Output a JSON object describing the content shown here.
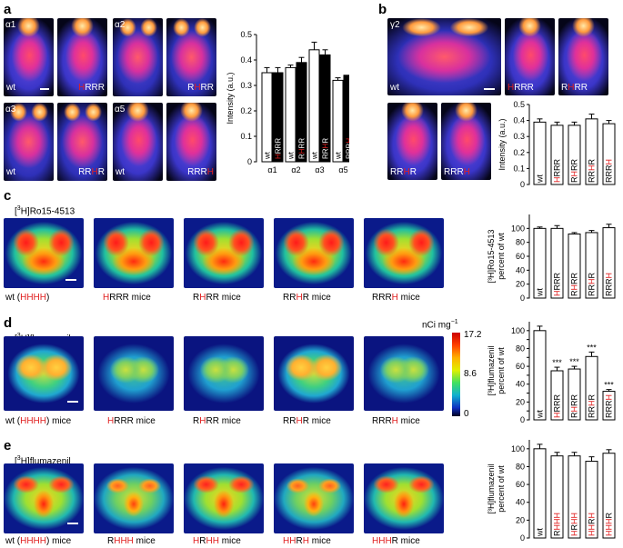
{
  "panels": {
    "a": {
      "label": "a",
      "images": [
        {
          "tag": "α1",
          "corner": "wt"
        },
        {
          "tag": "",
          "corner_parts": [
            {
              "t": "H",
              "red": true
            },
            {
              "t": "RRR",
              "red": false
            }
          ]
        },
        {
          "tag": "α2",
          "corner": ""
        },
        {
          "tag": "",
          "corner_parts": [
            {
              "t": "R",
              "red": false
            },
            {
              "t": "H",
              "red": true
            },
            {
              "t": "RR",
              "red": false
            }
          ]
        },
        {
          "tag": "α3",
          "corner": "wt"
        },
        {
          "tag": "",
          "corner_parts": [
            {
              "t": "RR",
              "red": false
            },
            {
              "t": "H",
              "red": true
            },
            {
              "t": "R",
              "red": false
            }
          ]
        },
        {
          "tag": "α5",
          "corner": "wt"
        },
        {
          "tag": "",
          "corner_parts": [
            {
              "t": "RRR",
              "red": false
            },
            {
              "t": "H",
              "red": true
            }
          ]
        }
      ]
    },
    "b": {
      "label": "b",
      "images": [
        {
          "tag": "γ2",
          "corner": "wt"
        },
        {
          "tag": "",
          "corner_parts": [
            {
              "t": "H",
              "red": true
            },
            {
              "t": "RRR",
              "red": false
            }
          ]
        },
        {
          "tag": "",
          "corner_parts": [
            {
              "t": "R",
              "red": false
            },
            {
              "t": "H",
              "red": true
            },
            {
              "t": "RR",
              "red": false
            }
          ]
        },
        {
          "tag": "",
          "corner_parts": [
            {
              "t": "RR",
              "red": false
            },
            {
              "t": "H",
              "red": true
            },
            {
              "t": "R",
              "red": false
            }
          ]
        },
        {
          "tag": "",
          "corner_parts": [
            {
              "t": "RRR",
              "red": false
            },
            {
              "t": "H",
              "red": true
            }
          ]
        }
      ]
    },
    "c": {
      "label": "c",
      "title_pre": "[",
      "title_sup": "3",
      "title_post": "H]Ro15-4513",
      "captions": [
        [
          {
            "t": "wt (",
            "red": false
          },
          {
            "t": "HHHH",
            "red": true
          },
          {
            "t": ")",
            "red": false
          }
        ],
        [
          {
            "t": "H",
            "red": true
          },
          {
            "t": "RRR mice",
            "red": false
          }
        ],
        [
          {
            "t": "R",
            "red": false
          },
          {
            "t": "H",
            "red": true
          },
          {
            "t": "RR mice",
            "red": false
          }
        ],
        [
          {
            "t": "RR",
            "red": false
          },
          {
            "t": "H",
            "red": true
          },
          {
            "t": "R mice",
            "red": false
          }
        ],
        [
          {
            "t": "RRR",
            "red": false
          },
          {
            "t": "H",
            "red": true
          },
          {
            "t": " mice",
            "red": false
          }
        ]
      ]
    },
    "d": {
      "label": "d",
      "title_pre": "[",
      "title_sup": "3",
      "title_post": "H]flumazenil",
      "colorbar": {
        "unit": "nCi mg",
        "unit_sup": "−1",
        "max": "17.2",
        "mid": "8.6",
        "min": "0"
      },
      "captions": [
        [
          {
            "t": "wt (",
            "red": false
          },
          {
            "t": "HHHH",
            "red": true
          },
          {
            "t": ") mice",
            "red": false
          }
        ],
        [
          {
            "t": "H",
            "red": true
          },
          {
            "t": "RRR mice",
            "red": false
          }
        ],
        [
          {
            "t": "R",
            "red": false
          },
          {
            "t": "H",
            "red": true
          },
          {
            "t": "RR mice",
            "red": false
          }
        ],
        [
          {
            "t": "RR",
            "red": false
          },
          {
            "t": "H",
            "red": true
          },
          {
            "t": "R mice",
            "red": false
          }
        ],
        [
          {
            "t": "RRR",
            "red": false
          },
          {
            "t": "H",
            "red": true
          },
          {
            "t": " mice",
            "red": false
          }
        ]
      ]
    },
    "e": {
      "label": "e",
      "title_pre": "[",
      "title_sup": "3",
      "title_post": "H]flumazenil",
      "captions": [
        [
          {
            "t": "wt (",
            "red": false
          },
          {
            "t": "HHHH",
            "red": true
          },
          {
            "t": ") mice",
            "red": false
          }
        ],
        [
          {
            "t": "R",
            "red": false
          },
          {
            "t": "HHH",
            "red": true
          },
          {
            "t": " mice",
            "red": false
          }
        ],
        [
          {
            "t": "H",
            "red": true
          },
          {
            "t": "R",
            "red": false
          },
          {
            "t": "HH",
            "red": true
          },
          {
            "t": " mice",
            "red": false
          }
        ],
        [
          {
            "t": "HH",
            "red": true
          },
          {
            "t": "R",
            "red": false
          },
          {
            "t": "H",
            "red": true
          },
          {
            "t": " mice",
            "red": false
          }
        ],
        [
          {
            "t": "HHH",
            "red": true
          },
          {
            "t": "R",
            "red": false
          },
          {
            "t": " mice",
            "red": false
          }
        ]
      ]
    }
  },
  "colors": {
    "red_residue": "#e02020",
    "bar_black": "#000000",
    "bar_white": "#ffffff"
  },
  "chart_data": [
    {
      "id": "a",
      "type": "bar",
      "ylabel": "Intensity (a.u.)",
      "ylim": [
        0,
        0.5
      ],
      "yticks": [
        "0",
        "0.1",
        "0.2",
        "0.3",
        "0.4",
        "0.5"
      ],
      "categories": [
        "α1",
        "α2",
        "α3",
        "α5"
      ],
      "series": [
        {
          "fill": "white",
          "values": [
            0.35,
            0.37,
            0.44,
            0.32
          ],
          "errors": [
            0.02,
            0.01,
            0.03,
            0.01
          ],
          "bar_labels": [
            [
              {
                "t": "wt",
                "red": false
              }
            ],
            [
              {
                "t": "wt",
                "red": false
              }
            ],
            [
              {
                "t": "wt",
                "red": false
              }
            ],
            [
              {
                "t": "wt",
                "red": false
              }
            ]
          ]
        },
        {
          "fill": "black",
          "values": [
            0.35,
            0.39,
            0.42,
            0.34
          ],
          "errors": [
            0.02,
            0.02,
            0.02,
            0.0
          ],
          "bar_labels": [
            [
              {
                "t": "H",
                "red": true
              },
              {
                "t": "RRR",
                "red": false
              }
            ],
            [
              {
                "t": "R",
                "red": false
              },
              {
                "t": "H",
                "red": true
              },
              {
                "t": "RR",
                "red": false
              }
            ],
            [
              {
                "t": "RR",
                "red": false
              },
              {
                "t": "H",
                "red": true
              },
              {
                "t": "R",
                "red": false
              }
            ],
            [
              {
                "t": "RRR",
                "red": false
              },
              {
                "t": "H",
                "red": true
              }
            ]
          ]
        }
      ],
      "grid": false
    },
    {
      "id": "b",
      "type": "bar",
      "ylabel": "Intensity (a.u.)",
      "ylim": [
        0,
        0.5
      ],
      "yticks": [
        "0",
        "0.1",
        "0.2",
        "0.3",
        "0.4",
        "0.5"
      ],
      "categories": [
        "wt",
        "HRRR",
        "RHRR",
        "RRHR",
        "RRRH"
      ],
      "values": [
        0.39,
        0.37,
        0.37,
        0.41,
        0.38
      ],
      "errors": [
        0.02,
        0.02,
        0.02,
        0.03,
        0.02
      ],
      "bar_labels": [
        [
          {
            "t": "wt",
            "red": false
          }
        ],
        [
          {
            "t": "H",
            "red": true
          },
          {
            "t": "RRR",
            "red": false
          }
        ],
        [
          {
            "t": "R",
            "red": false
          },
          {
            "t": "H",
            "red": true
          },
          {
            "t": "RR",
            "red": false
          }
        ],
        [
          {
            "t": "RR",
            "red": false
          },
          {
            "t": "H",
            "red": true
          },
          {
            "t": "R",
            "red": false
          }
        ],
        [
          {
            "t": "RRR",
            "red": false
          },
          {
            "t": "H",
            "red": true
          }
        ]
      ],
      "significance": [
        "",
        "",
        "",
        "",
        ""
      ],
      "grid": false
    },
    {
      "id": "c",
      "type": "bar",
      "ylabel_lines": [
        "[³H]Ro15-4513",
        "percent of wt"
      ],
      "ylim": [
        0,
        120
      ],
      "yticks": [
        "0",
        "20",
        "40",
        "60",
        "80",
        "100"
      ],
      "categories": [
        "wt",
        "HRRR",
        "RHRR",
        "RRHR",
        "RRRH"
      ],
      "values": [
        100,
        100,
        92,
        94,
        101
      ],
      "errors": [
        2,
        4,
        2,
        3,
        5
      ],
      "bar_labels": [
        [
          {
            "t": "wt",
            "red": false
          }
        ],
        [
          {
            "t": "H",
            "red": true
          },
          {
            "t": "RRR",
            "red": false
          }
        ],
        [
          {
            "t": "R",
            "red": false
          },
          {
            "t": "H",
            "red": true
          },
          {
            "t": "RR",
            "red": false
          }
        ],
        [
          {
            "t": "RR",
            "red": false
          },
          {
            "t": "H",
            "red": true
          },
          {
            "t": "R",
            "red": false
          }
        ],
        [
          {
            "t": "RRR",
            "red": false
          },
          {
            "t": "H",
            "red": true
          }
        ]
      ],
      "significance": [
        "",
        "",
        "",
        "",
        ""
      ],
      "grid": false
    },
    {
      "id": "d",
      "type": "bar",
      "ylabel_lines": [
        "[³H]flumazenil",
        "percent of wt"
      ],
      "ylim": [
        0,
        110
      ],
      "yticks": [
        "0",
        "10",
        "20",
        "30",
        "40",
        "50",
        "60",
        "70",
        "80",
        "90",
        "100"
      ],
      "tick_labels_shown": [
        "0",
        "20",
        "40",
        "60",
        "80",
        "100"
      ],
      "categories": [
        "wt",
        "HRRR",
        "RHRR",
        "RRHR",
        "RRRH"
      ],
      "values": [
        100,
        55,
        57,
        71,
        32
      ],
      "errors": [
        5,
        4,
        3,
        5,
        2
      ],
      "bar_labels": [
        [
          {
            "t": "wt",
            "red": false
          }
        ],
        [
          {
            "t": "H",
            "red": true
          },
          {
            "t": "RRR",
            "red": false
          }
        ],
        [
          {
            "t": "R",
            "red": false
          },
          {
            "t": "H",
            "red": true
          },
          {
            "t": "RR",
            "red": false
          }
        ],
        [
          {
            "t": "RR",
            "red": false
          },
          {
            "t": "H",
            "red": true
          },
          {
            "t": "R",
            "red": false
          }
        ],
        [
          {
            "t": "RRR",
            "red": false
          },
          {
            "t": "H",
            "red": true
          }
        ]
      ],
      "significance": [
        "",
        "***",
        "***",
        "***",
        "***"
      ],
      "grid": false
    },
    {
      "id": "e",
      "type": "bar",
      "ylabel_lines": [
        "[³H]flumazenil",
        "percent of wt"
      ],
      "ylim": [
        0,
        110
      ],
      "yticks": [
        "0",
        "20",
        "40",
        "60",
        "80",
        "100"
      ],
      "categories": [
        "wt",
        "RHHH",
        "HRHH",
        "HHRH",
        "HHHR"
      ],
      "values": [
        100,
        92,
        92,
        86,
        95
      ],
      "errors": [
        5,
        4,
        4,
        5,
        4
      ],
      "bar_labels": [
        [
          {
            "t": "wt",
            "red": false
          }
        ],
        [
          {
            "t": "R",
            "red": false
          },
          {
            "t": "HHH",
            "red": true
          }
        ],
        [
          {
            "t": "H",
            "red": true
          },
          {
            "t": "R",
            "red": false
          },
          {
            "t": "HH",
            "red": true
          }
        ],
        [
          {
            "t": "HH",
            "red": true
          },
          {
            "t": "R",
            "red": false
          },
          {
            "t": "H",
            "red": true
          }
        ],
        [
          {
            "t": "HHH",
            "red": true
          },
          {
            "t": "R",
            "red": false
          }
        ]
      ],
      "significance": [
        "",
        "",
        "",
        "",
        ""
      ],
      "grid": false
    }
  ]
}
